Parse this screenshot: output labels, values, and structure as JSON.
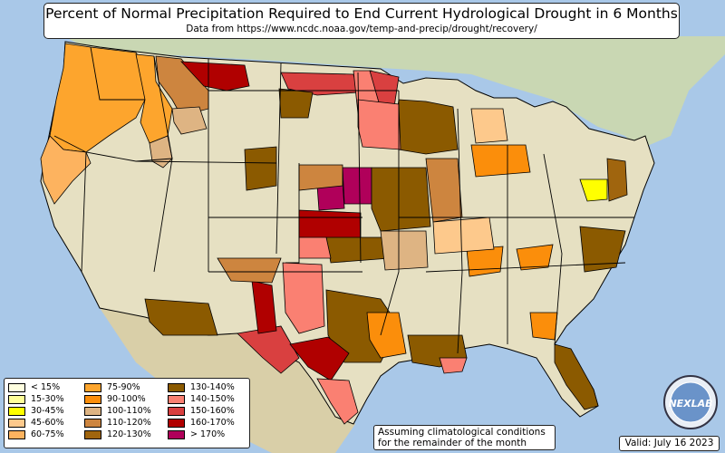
{
  "title": "Percent of Normal Precipitation Required to End Current Hydrological Drought in 6 Months",
  "subtitle": "Data from https://www.ncdc.noaa.gov/temp-and-precip/drought/recovery/",
  "note": "Assuming climatological conditions for the remainder of the month",
  "valid": "Valid: July 16 2023",
  "logo_text": "NEXLAB",
  "colors": {
    "ocean": "#a9c8e8",
    "land": "#e6e0c2",
    "canada": "#c9d7b3",
    "mexico": "#d9cfa8",
    "border": "#000000"
  },
  "legend": [
    {
      "label": "< 15%",
      "color": "#ffffe0"
    },
    {
      "label": "15-30%",
      "color": "#ffff99"
    },
    {
      "label": "30-45%",
      "color": "#ffff00"
    },
    {
      "label": "45-60%",
      "color": "#fdc98c"
    },
    {
      "label": "60-75%",
      "color": "#fdb35f"
    },
    {
      "label": "75-90%",
      "color": "#fda52d"
    },
    {
      "label": "90-100%",
      "color": "#fb8e0b"
    },
    {
      "label": "100-110%",
      "color": "#deb483"
    },
    {
      "label": "110-120%",
      "color": "#cd853f"
    },
    {
      "label": "120-130%",
      "color": "#a0650e"
    },
    {
      "label": "130-140%",
      "color": "#8b5a00"
    },
    {
      "label": "140-150%",
      "color": "#fa8072"
    },
    {
      "label": "150-160%",
      "color": "#d94040"
    },
    {
      "label": "160-170%",
      "color": "#b00000"
    },
    {
      "label": "> 170%",
      "color": "#b0005a"
    }
  ],
  "regions": [
    {
      "category": "60-75%"
    },
    {
      "category": "75-90%"
    },
    {
      "category": "110-120%"
    },
    {
      "category": "100-110%"
    },
    {
      "category": "160-170%"
    },
    {
      "category": "150-160%"
    },
    {
      "category": "140-150%"
    },
    {
      "category": "130-140%"
    },
    {
      "category": "> 170%"
    },
    {
      "category": "90-100%"
    },
    {
      "category": "30-45%"
    },
    {
      "category": "120-130%"
    },
    {
      "category": "45-60%"
    }
  ]
}
